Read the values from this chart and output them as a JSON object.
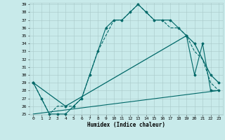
{
  "title": "",
  "xlabel": "Humidex (Indice chaleur)",
  "bg_color": "#c8eaea",
  "line_color": "#006868",
  "grid_color": "#a8c8c8",
  "ylim": [
    25,
    39
  ],
  "xlim": [
    -0.5,
    23.5
  ],
  "yticks": [
    25,
    26,
    27,
    28,
    29,
    30,
    31,
    32,
    33,
    34,
    35,
    36,
    37,
    38,
    39
  ],
  "xticks": [
    0,
    1,
    2,
    3,
    4,
    5,
    6,
    7,
    8,
    9,
    10,
    11,
    12,
    13,
    14,
    15,
    16,
    17,
    18,
    19,
    20,
    21,
    22,
    23
  ],
  "series1_x": [
    0,
    1,
    2,
    3,
    4,
    5,
    6,
    7,
    8,
    9,
    10,
    11,
    12,
    13,
    14,
    15,
    16,
    17,
    18,
    19,
    20,
    21,
    22,
    23
  ],
  "series1_y": [
    29,
    27,
    25,
    25,
    25,
    26,
    27,
    30,
    33,
    36,
    37,
    37,
    38,
    39,
    38,
    37,
    37,
    37,
    36,
    35,
    30,
    34,
    28,
    28
  ],
  "series2_x": [
    0,
    1,
    2,
    3,
    4,
    5,
    6,
    7,
    8,
    9,
    10,
    11,
    12,
    13,
    14,
    15,
    16,
    17,
    18,
    19,
    20,
    21,
    22,
    23
  ],
  "series2_y": [
    29,
    27,
    25,
    26,
    26,
    26,
    27,
    30,
    33,
    35,
    37,
    37,
    38,
    39,
    38,
    37,
    37,
    36,
    36,
    35,
    33,
    32,
    29,
    28
  ],
  "series3_x": [
    0,
    23
  ],
  "series3_y": [
    25,
    28
  ],
  "series4_x": [
    0,
    4,
    19,
    20,
    22,
    23
  ],
  "series4_y": [
    29,
    26,
    35,
    34,
    30,
    29
  ],
  "tick_fontsize": 4.5,
  "xlabel_fontsize": 5.5
}
